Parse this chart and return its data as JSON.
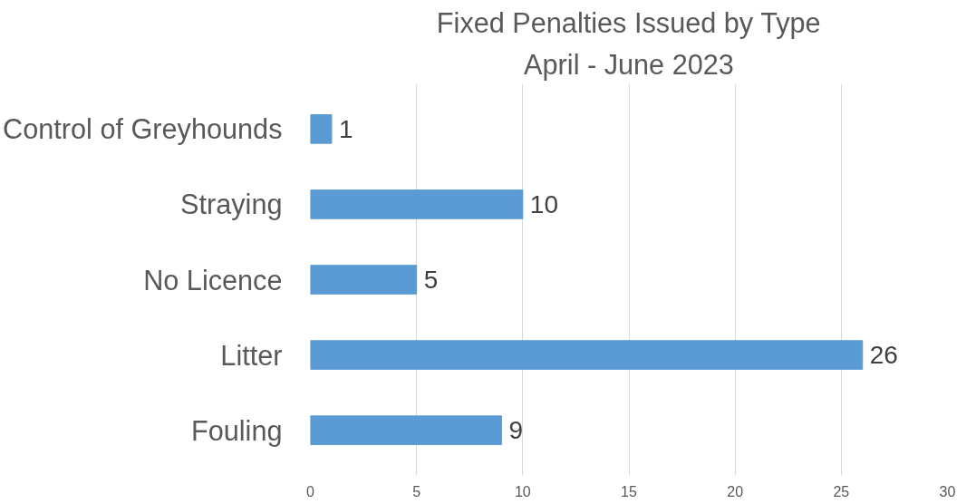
{
  "chart_data": {
    "type": "bar",
    "orientation": "horizontal",
    "title": "Fixed Penalties Issued by Type",
    "subtitle": "April - June 2023",
    "categories": [
      "Control of Greyhounds",
      "Straying",
      "No Licence",
      "Litter",
      "Fouling"
    ],
    "values": [
      1,
      10,
      5,
      26,
      9
    ],
    "color": "#5b9bd5",
    "xlim": [
      0,
      30
    ],
    "xticks": [
      0,
      5,
      10,
      15,
      20,
      25,
      30
    ],
    "grid": "x",
    "data_labels": true
  }
}
